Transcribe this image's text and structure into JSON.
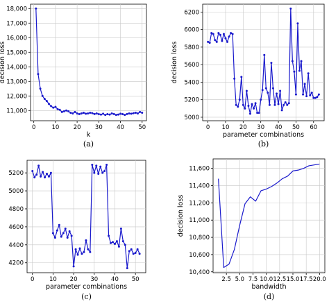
{
  "colors": {
    "series": "#1a1acc",
    "grid": "#c8c8c8",
    "axis": "#000000"
  },
  "chart_data": [
    {
      "id": "a",
      "type": "line",
      "panel_label": "(a)",
      "title": "",
      "xlabel": "k",
      "ylabel": "decision loss",
      "grid": true,
      "markers": true,
      "xlim": [
        -1.5,
        52
      ],
      "ylim": [
        10300,
        18300
      ],
      "xticks": [
        0,
        10,
        20,
        30,
        40,
        50
      ],
      "xtick_labels": [
        "0",
        "10",
        "20",
        "30",
        "40",
        "50"
      ],
      "yticks": [
        11000,
        12000,
        13000,
        14000,
        15000,
        16000,
        17000,
        18000
      ],
      "ytick_labels": [
        "11,000",
        "12,000",
        "13,000",
        "14,000",
        "15,000",
        "16,000",
        "17,000",
        "18,000"
      ],
      "x": [
        1,
        2,
        3,
        4,
        5,
        6,
        7,
        8,
        9,
        10,
        11,
        12,
        13,
        14,
        15,
        16,
        17,
        18,
        19,
        20,
        21,
        22,
        23,
        24,
        25,
        26,
        27,
        28,
        29,
        30,
        31,
        32,
        33,
        34,
        35,
        36,
        37,
        38,
        39,
        40,
        41,
        42,
        43,
        44,
        45,
        46,
        47,
        48,
        49,
        50
      ],
      "y": [
        18000,
        13500,
        12500,
        12000,
        11800,
        11650,
        11450,
        11300,
        11200,
        11250,
        11100,
        11050,
        10900,
        10950,
        11000,
        10950,
        10850,
        10800,
        10900,
        10800,
        10750,
        10800,
        10850,
        10780,
        10800,
        10850,
        10820,
        10760,
        10800,
        10750,
        10720,
        10780,
        10700,
        10750,
        10720,
        10800,
        10760,
        10700,
        10720,
        10780,
        10750,
        10700,
        10760,
        10800,
        10780,
        10820,
        10850,
        10800,
        10900,
        10850
      ]
    },
    {
      "id": "b",
      "type": "line",
      "panel_label": "(b)",
      "title": "",
      "xlabel": "parameter combinations",
      "ylabel": "decision loss",
      "grid": true,
      "markers": true,
      "xlim": [
        -3,
        66
      ],
      "ylim": [
        4960,
        6290
      ],
      "xticks": [
        0,
        10,
        20,
        30,
        40,
        50,
        60
      ],
      "xtick_labels": [
        "0",
        "10",
        "20",
        "30",
        "40",
        "50",
        "60"
      ],
      "yticks": [
        5000,
        5200,
        5400,
        5600,
        5800,
        6000,
        6200
      ],
      "ytick_labels": [
        "5000",
        "5200",
        "5400",
        "5600",
        "5800",
        "6000",
        "6200"
      ],
      "x": [
        0,
        1,
        2,
        3,
        4,
        5,
        6,
        7,
        8,
        9,
        10,
        11,
        12,
        13,
        14,
        15,
        16,
        17,
        18,
        19,
        20,
        21,
        22,
        23,
        24,
        25,
        26,
        27,
        28,
        29,
        30,
        31,
        32,
        33,
        34,
        35,
        36,
        37,
        38,
        39,
        40,
        41,
        42,
        43,
        44,
        45,
        46,
        47,
        48,
        49,
        50,
        51,
        52,
        53,
        54,
        55,
        56,
        57,
        58,
        59,
        60,
        61,
        62,
        63
      ],
      "y": [
        5860,
        5850,
        5960,
        5950,
        5880,
        5860,
        5960,
        5940,
        5870,
        5950,
        5900,
        5860,
        5920,
        5960,
        5950,
        5440,
        5140,
        5120,
        5200,
        5460,
        5140,
        5100,
        5300,
        5130,
        5040,
        5150,
        5100,
        5160,
        5050,
        5050,
        5200,
        5310,
        5710,
        5330,
        5280,
        5140,
        5620,
        5330,
        5140,
        5270,
        5150,
        5300,
        5080,
        5140,
        5170,
        5140,
        5160,
        6240,
        5640,
        5520,
        5260,
        6070,
        5530,
        5640,
        5260,
        5380,
        5240,
        5500,
        5250,
        5280,
        5220,
        5220,
        5230,
        5260
      ]
    },
    {
      "id": "c",
      "type": "line",
      "panel_label": "(c)",
      "title": "",
      "xlabel": "parameter combinations",
      "ylabel": "",
      "grid": true,
      "markers": true,
      "xlim": [
        -2.6,
        55
      ],
      "ylim": [
        4090,
        5340
      ],
      "xticks": [
        0,
        10,
        20,
        30,
        40,
        50
      ],
      "xtick_labels": [
        "0",
        "10",
        "20",
        "30",
        "40",
        "50"
      ],
      "yticks": [
        4200,
        4400,
        4600,
        4800,
        5000,
        5200
      ],
      "ytick_labels": [
        "4200",
        "4400",
        "4600",
        "4800",
        "5000",
        "5200"
      ],
      "x": [
        0,
        1,
        2,
        3,
        4,
        5,
        6,
        7,
        8,
        9,
        10,
        11,
        12,
        13,
        14,
        15,
        16,
        17,
        18,
        19,
        20,
        21,
        22,
        23,
        24,
        25,
        26,
        27,
        28,
        29,
        30,
        31,
        32,
        33,
        34,
        35,
        36,
        37,
        38,
        39,
        40,
        41,
        42,
        43,
        44,
        45,
        46,
        47,
        48,
        49,
        50,
        51,
        52
      ],
      "y": [
        5220,
        5150,
        5180,
        5280,
        5160,
        5210,
        5150,
        5190,
        5160,
        5200,
        4530,
        4480,
        4560,
        4620,
        4490,
        4530,
        4580,
        4480,
        4550,
        4500,
        4160,
        4350,
        4290,
        4360,
        4300,
        4320,
        4450,
        4350,
        4320,
        5290,
        5200,
        5280,
        5190,
        5270,
        5200,
        5220,
        5290,
        4500,
        4420,
        4430,
        4410,
        4440,
        4380,
        4580,
        4440,
        4400,
        4140,
        4330,
        4350,
        4300,
        4310,
        4350,
        4300
      ]
    },
    {
      "id": "d",
      "type": "line",
      "panel_label": "(d)",
      "title": "",
      "xlabel": "bandwidth",
      "ylabel": "decision loss",
      "grid": true,
      "markers": false,
      "xlim": [
        0,
        21
      ],
      "ylim": [
        10390,
        11710
      ],
      "xticks": [
        2.5,
        5.0,
        7.5,
        10.0,
        12.5,
        15.0,
        17.5,
        20.0
      ],
      "xtick_labels": [
        "2.5",
        "5.0",
        "7.5",
        "10.0",
        "12.5",
        "15.0",
        "17.5",
        "20.0"
      ],
      "yticks": [
        10400,
        10600,
        10800,
        11000,
        11200,
        11400,
        11600
      ],
      "ytick_labels": [
        "10,400",
        "10,600",
        "10,800",
        "11,000",
        "11,200",
        "11,400",
        "11,600"
      ],
      "x": [
        1,
        2,
        3,
        4,
        5,
        6,
        7,
        8,
        9,
        10,
        11,
        12,
        13,
        14,
        15,
        16,
        17,
        18,
        19,
        20
      ],
      "y": [
        11480,
        10450,
        10490,
        10660,
        10940,
        11190,
        11270,
        11220,
        11340,
        11360,
        11390,
        11430,
        11480,
        11510,
        11570,
        11580,
        11600,
        11630,
        11640,
        11650
      ]
    }
  ]
}
